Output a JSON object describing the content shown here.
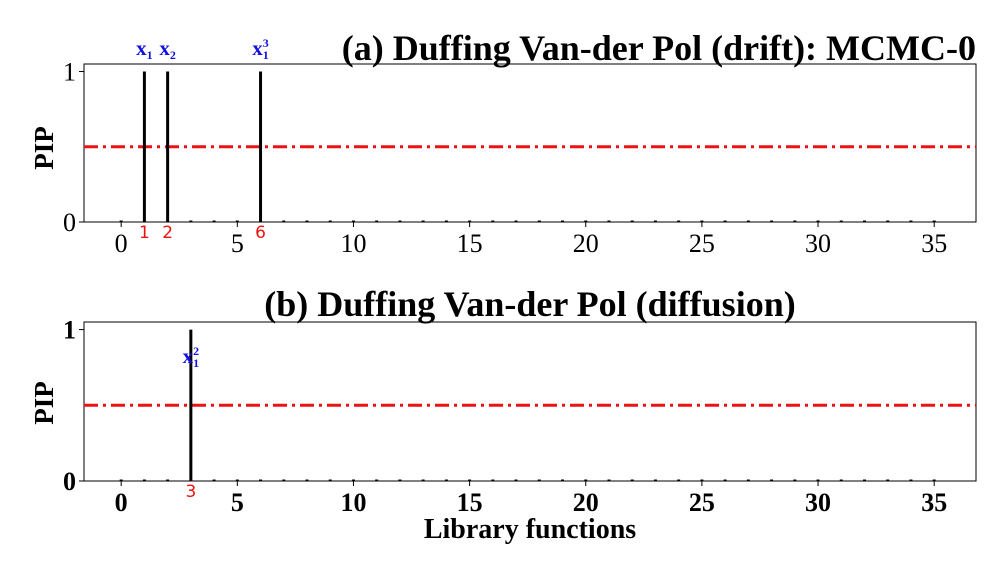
{
  "chart_data": [
    {
      "type": "bar",
      "title": "(a) Duffing Van-der Pol (drift): MCMC-0",
      "xlabel": "",
      "ylabel": "PIP",
      "xlim": [
        -1.6,
        36.8
      ],
      "ylim": [
        0,
        1.05
      ],
      "xticks": [
        "0",
        "5",
        "10",
        "15",
        "20",
        "25",
        "30",
        "35"
      ],
      "yticks": [
        "0",
        "1"
      ],
      "threshold": 0.5,
      "x": [
        0,
        1,
        2,
        3,
        4,
        5,
        6,
        7,
        8,
        9,
        10,
        11,
        12,
        13,
        14,
        15,
        16,
        17,
        18,
        19,
        20,
        21,
        22,
        23,
        24,
        25,
        26,
        27,
        28,
        29,
        30,
        31,
        32,
        33,
        34,
        35
      ],
      "values": [
        0,
        1,
        1,
        0,
        0,
        0,
        1,
        0,
        0,
        0,
        0,
        0,
        0,
        0,
        0,
        0,
        0,
        0,
        0,
        0,
        0,
        0,
        0,
        0,
        0,
        0,
        0,
        0,
        0,
        0,
        0,
        0,
        0,
        0,
        0,
        0
      ],
      "annotations": [
        {
          "x": 1,
          "term": "x",
          "sub": "1",
          "sup": "",
          "index": "1",
          "term_y": 1.15
        },
        {
          "x": 2,
          "term": "x",
          "sub": "2",
          "sup": "",
          "index": "2",
          "term_y": 1.15
        },
        {
          "x": 6,
          "term": "x",
          "sub": "1",
          "sup": "3",
          "index": "6",
          "term_y": 1.15
        }
      ]
    },
    {
      "type": "bar",
      "title": "(b) Duffing Van-der Pol (diffusion)",
      "xlabel": "Library functions",
      "ylabel": "PIP",
      "xlim": [
        -1.6,
        36.8
      ],
      "ylim": [
        0,
        1.05
      ],
      "xticks": [
        "0",
        "5",
        "10",
        "15",
        "20",
        "25",
        "30",
        "35"
      ],
      "yticks": [
        "0",
        "1"
      ],
      "threshold": 0.5,
      "x": [
        0,
        1,
        2,
        3,
        4,
        5,
        6,
        7,
        8,
        9,
        10,
        11,
        12,
        13,
        14,
        15,
        16,
        17,
        18,
        19,
        20,
        21,
        22,
        23,
        24,
        25,
        26,
        27,
        28,
        29,
        30,
        31,
        32,
        33,
        34,
        35
      ],
      "values": [
        0,
        0,
        0,
        1,
        0,
        0,
        0,
        0,
        0,
        0,
        0,
        0,
        0,
        0,
        0,
        0,
        0,
        0,
        0,
        0,
        0,
        0,
        0,
        0,
        0,
        0,
        0,
        0,
        0,
        0,
        0,
        0,
        0,
        0,
        0,
        0
      ],
      "annotations": [
        {
          "x": 3,
          "term": "x",
          "sub": "1",
          "sup": "2",
          "index": "3",
          "term_y": 0.82
        }
      ]
    }
  ],
  "colors": {
    "bar": "#000000",
    "threshold": "#ee1111",
    "term": "#1010e0",
    "index": "#ee1111",
    "axis": "#000000"
  }
}
